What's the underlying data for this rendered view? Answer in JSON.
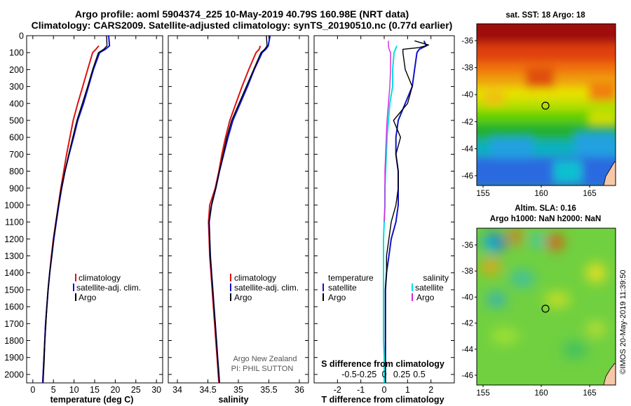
{
  "header": {
    "title_line1": "Argo profile: aoml 5904374_225 10-May-2019 40.79S 160.98E (NRT data)",
    "title_line2": "Climatology: CARS2009. Satellite-adjusted climatology: synTS_20190510.nc (0.77d earlier)"
  },
  "colors": {
    "climatology": "#dd1111",
    "satellite": "#1111cc",
    "argo": "#000000",
    "sat_salinity": "#00e0e0",
    "argo_salinity": "#dd22dd"
  },
  "chart_data": [
    {
      "type": "line",
      "id": "temperature",
      "xlabel": "temperature (deg C)",
      "ylabel": "",
      "xlim": [
        -1.5,
        31.5
      ],
      "ylim": [
        2050,
        0
      ],
      "xticks": [
        0,
        5,
        10,
        15,
        20,
        25,
        30
      ],
      "yticks": [
        0,
        100,
        200,
        300,
        400,
        500,
        600,
        700,
        800,
        900,
        1000,
        1100,
        1200,
        1300,
        1400,
        1500,
        1600,
        1700,
        1800,
        1900,
        2000
      ],
      "series": [
        {
          "name": "climatology",
          "color": "#dd1111",
          "points": [
            [
              16.0,
              60
            ],
            [
              15.3,
              80
            ],
            [
              14.5,
              100
            ],
            [
              13.3,
              200
            ],
            [
              12.1,
              300
            ],
            [
              10.9,
              400
            ],
            [
              9.8,
              500
            ],
            [
              9.0,
              600
            ],
            [
              8.2,
              700
            ],
            [
              7.5,
              800
            ],
            [
              6.8,
              900
            ],
            [
              6.2,
              1000
            ],
            [
              5.6,
              1100
            ],
            [
              5.0,
              1200
            ],
            [
              4.5,
              1300
            ],
            [
              4.1,
              1400
            ],
            [
              3.7,
              1500
            ],
            [
              3.4,
              1600
            ],
            [
              3.1,
              1700
            ],
            [
              2.9,
              1800
            ],
            [
              2.7,
              1900
            ],
            [
              2.5,
              2000
            ],
            [
              2.4,
              2050
            ]
          ]
        },
        {
          "name": "satellite-adj. clim.",
          "color": "#1111cc",
          "points": [
            [
              18.4,
              0
            ],
            [
              18.6,
              60
            ],
            [
              17.6,
              80
            ],
            [
              16.2,
              100
            ],
            [
              14.7,
              200
            ],
            [
              13.5,
              300
            ],
            [
              12.3,
              400
            ],
            [
              10.9,
              500
            ],
            [
              9.9,
              600
            ],
            [
              8.8,
              700
            ],
            [
              7.8,
              800
            ],
            [
              7.0,
              900
            ],
            [
              6.3,
              1000
            ],
            [
              5.7,
              1100
            ],
            [
              5.1,
              1200
            ],
            [
              4.6,
              1300
            ],
            [
              4.1,
              1400
            ],
            [
              3.7,
              1500
            ],
            [
              3.4,
              1600
            ],
            [
              3.1,
              1700
            ],
            [
              2.9,
              1800
            ],
            [
              2.7,
              1900
            ],
            [
              2.5,
              2000
            ],
            [
              2.4,
              2050
            ]
          ]
        },
        {
          "name": "Argo",
          "color": "#000000",
          "points": [
            [
              17.9,
              0
            ],
            [
              18.0,
              60
            ],
            [
              17.2,
              80
            ],
            [
              15.9,
              100
            ],
            [
              14.5,
              200
            ],
            [
              13.3,
              300
            ],
            [
              12.0,
              400
            ],
            [
              10.7,
              500
            ],
            [
              9.7,
              600
            ],
            [
              8.7,
              700
            ],
            [
              7.8,
              800
            ],
            [
              6.9,
              900
            ],
            [
              6.2,
              1000
            ],
            [
              5.6,
              1100
            ],
            [
              5.0,
              1200
            ],
            [
              4.6,
              1300
            ],
            [
              4.1,
              1400
            ],
            [
              3.7,
              1500
            ],
            [
              3.4,
              1600
            ],
            [
              3.2,
              1700
            ],
            [
              2.9,
              1800
            ],
            [
              2.8,
              1900
            ],
            [
              2.6,
              2000
            ],
            [
              2.5,
              2050
            ]
          ]
        }
      ],
      "legend": [
        "climatology",
        "satellite-adj. clim.",
        "Argo"
      ]
    },
    {
      "type": "line",
      "id": "salinity",
      "xlabel": "salinity",
      "xlim": [
        33.85,
        36.15
      ],
      "ylim": [
        2050,
        0
      ],
      "xticks": [
        34,
        34.5,
        35,
        35.5,
        36
      ],
      "series": [
        {
          "name": "climatology",
          "color": "#dd1111",
          "points": [
            [
              35.36,
              60
            ],
            [
              35.34,
              80
            ],
            [
              35.29,
              100
            ],
            [
              35.17,
              200
            ],
            [
              35.06,
              300
            ],
            [
              34.96,
              400
            ],
            [
              34.86,
              500
            ],
            [
              34.79,
              600
            ],
            [
              34.73,
              700
            ],
            [
              34.68,
              800
            ],
            [
              34.62,
              900
            ],
            [
              34.53,
              1000
            ],
            [
              34.51,
              1100
            ],
            [
              34.52,
              1200
            ],
            [
              34.53,
              1300
            ],
            [
              34.55,
              1400
            ],
            [
              34.57,
              1500
            ],
            [
              34.59,
              1600
            ],
            [
              34.61,
              1700
            ],
            [
              34.63,
              1800
            ],
            [
              34.65,
              1900
            ],
            [
              34.67,
              2000
            ],
            [
              34.68,
              2050
            ]
          ]
        },
        {
          "name": "satellite-adj. clim.",
          "color": "#1111cc",
          "points": [
            [
              35.52,
              0
            ],
            [
              35.49,
              60
            ],
            [
              35.45,
              80
            ],
            [
              35.39,
              100
            ],
            [
              35.26,
              200
            ],
            [
              35.15,
              300
            ],
            [
              35.03,
              400
            ],
            [
              34.91,
              500
            ],
            [
              34.83,
              600
            ],
            [
              34.76,
              700
            ],
            [
              34.69,
              800
            ],
            [
              34.63,
              900
            ],
            [
              34.56,
              1000
            ],
            [
              34.52,
              1100
            ],
            [
              34.53,
              1200
            ],
            [
              34.54,
              1300
            ],
            [
              34.56,
              1400
            ],
            [
              34.58,
              1500
            ],
            [
              34.6,
              1600
            ],
            [
              34.62,
              1700
            ],
            [
              34.64,
              1800
            ],
            [
              34.66,
              1900
            ],
            [
              34.68,
              2000
            ],
            [
              34.69,
              2050
            ]
          ]
        },
        {
          "name": "Argo",
          "color": "#000000",
          "points": [
            [
              35.46,
              0
            ],
            [
              35.47,
              60
            ],
            [
              35.43,
              80
            ],
            [
              35.37,
              100
            ],
            [
              35.25,
              200
            ],
            [
              35.13,
              300
            ],
            [
              35.01,
              400
            ],
            [
              34.89,
              500
            ],
            [
              34.81,
              600
            ],
            [
              34.75,
              700
            ],
            [
              34.69,
              800
            ],
            [
              34.63,
              900
            ],
            [
              34.56,
              1000
            ],
            [
              34.52,
              1100
            ],
            [
              34.53,
              1200
            ],
            [
              34.54,
              1300
            ],
            [
              34.56,
              1400
            ],
            [
              34.58,
              1500
            ],
            [
              34.6,
              1600
            ],
            [
              34.62,
              1700
            ],
            [
              34.64,
              1800
            ],
            [
              34.66,
              1900
            ],
            [
              34.68,
              2000
            ],
            [
              34.69,
              2050
            ]
          ]
        }
      ],
      "legend": [
        "climatology",
        "satellite-adj. clim.",
        "Argo"
      ],
      "note": [
        "Argo New Zealand",
        "PI: PHIL SUTTON"
      ]
    },
    {
      "type": "line",
      "id": "difference",
      "xlabel": "T difference from climatology",
      "xlabel_top": "S difference from climatology",
      "xlim": [
        -3,
        3
      ],
      "ylim": [
        2050,
        0
      ],
      "xticks": [
        -2,
        -1,
        0,
        1,
        2
      ],
      "xtick_labels": [
        "-2",
        "-1",
        "0",
        "1",
        "2"
      ],
      "s_ticks": [
        -0.5,
        -0.25,
        0,
        0.25,
        0.5
      ],
      "s_tick_labels": [
        "-0.5",
        "-0.25",
        "0",
        "0.25",
        "0.5"
      ],
      "series": [
        {
          "name": "temperature satellite",
          "color": "#1111cc",
          "points": [
            [
              1.7,
              30
            ],
            [
              1.8,
              60
            ],
            [
              1.5,
              80
            ],
            [
              1.4,
              100
            ],
            [
              1.3,
              200
            ],
            [
              1.2,
              300
            ],
            [
              0.9,
              400
            ],
            [
              0.6,
              500
            ],
            [
              0.5,
              600
            ],
            [
              0.5,
              700
            ],
            [
              0.6,
              800
            ],
            [
              0.6,
              900
            ],
            [
              0.6,
              1000
            ],
            [
              0.5,
              1100
            ],
            [
              0.3,
              1200
            ],
            [
              0.2,
              1300
            ],
            [
              0.1,
              1400
            ],
            [
              0.05,
              1500
            ],
            [
              0.05,
              1600
            ],
            [
              0.05,
              1700
            ],
            [
              0.05,
              1800
            ],
            [
              0.05,
              1900
            ],
            [
              0.05,
              2000
            ],
            [
              0.05,
              2050
            ]
          ]
        },
        {
          "name": "temperature Argo",
          "color": "#000000",
          "points": [
            [
              1.3,
              30
            ],
            [
              1.9,
              55
            ],
            [
              1.5,
              70
            ],
            [
              0.8,
              80
            ],
            [
              0.8,
              100
            ],
            [
              0.9,
              200
            ],
            [
              1.2,
              300
            ],
            [
              1.0,
              400
            ],
            [
              0.4,
              500
            ],
            [
              0.7,
              600
            ],
            [
              0.5,
              700
            ],
            [
              0.6,
              800
            ],
            [
              0.6,
              900
            ],
            [
              0.5,
              1000
            ],
            [
              0.3,
              1100
            ],
            [
              0.2,
              1200
            ],
            [
              0.1,
              1300
            ],
            [
              0.1,
              1400
            ],
            [
              0.05,
              1500
            ],
            [
              0.05,
              1600
            ],
            [
              0.05,
              1700
            ],
            [
              0.05,
              1800
            ],
            [
              0.05,
              1900
            ],
            [
              0.05,
              2000
            ],
            [
              0.05,
              2050
            ]
          ]
        },
        {
          "name": "salinity satellite",
          "color": "#00e0e0",
          "points": [
            [
              0.18,
              60
            ],
            [
              0.16,
              80
            ],
            [
              0.14,
              100
            ],
            [
              0.12,
              200
            ],
            [
              0.12,
              300
            ],
            [
              0.08,
              400
            ],
            [
              0.06,
              500
            ],
            [
              0.04,
              600
            ],
            [
              0.03,
              700
            ],
            [
              0.02,
              800
            ],
            [
              0.01,
              900
            ],
            [
              0.01,
              1000
            ],
            [
              0.0,
              1100
            ],
            [
              -0.01,
              1200
            ],
            [
              -0.01,
              1300
            ],
            [
              -0.01,
              1400
            ],
            [
              -0.01,
              1500
            ],
            [
              -0.01,
              1600
            ],
            [
              -0.01,
              1700
            ],
            [
              -0.01,
              1800
            ],
            [
              0.0,
              1900
            ],
            [
              0.0,
              2000
            ],
            [
              0.0,
              2050
            ]
          ]
        },
        {
          "name": "salinity Argo",
          "color": "#dd22dd",
          "points": [
            [
              0.06,
              30
            ],
            [
              0.06,
              60
            ],
            [
              0.07,
              80
            ],
            [
              0.09,
              100
            ],
            [
              0.09,
              200
            ],
            [
              0.08,
              300
            ],
            [
              0.06,
              400
            ],
            [
              0.04,
              500
            ],
            [
              0.03,
              600
            ],
            [
              0.02,
              700
            ],
            [
              0.01,
              800
            ],
            [
              0.01,
              900
            ],
            [
              0.01,
              1000
            ],
            [
              0.0,
              1100
            ]
          ]
        }
      ],
      "legend_left_title": "temperature",
      "legend_right_title": "salinity",
      "legend_left": [
        "satellite",
        "Argo"
      ],
      "legend_right": [
        "satellite",
        "Argo"
      ]
    }
  ],
  "maps": {
    "sst": {
      "title": "sat. SST: 18 Argo: 18",
      "lat_labels": [
        "-36",
        "-38",
        "-40",
        "-42",
        "-44",
        "-46"
      ],
      "lon_labels": [
        "155",
        "160",
        "165"
      ]
    },
    "sla": {
      "title_line1": "Altim. SLA: 0.16",
      "title_line2": "Argo h1000: NaN h2000: NaN",
      "lat_labels": [
        "-36",
        "-38",
        "-40",
        "-42",
        "-44",
        "-46"
      ],
      "lon_labels": [
        "155",
        "160",
        "165"
      ]
    }
  },
  "stamp": "©IMOS 20-May-2019 11:39:50"
}
